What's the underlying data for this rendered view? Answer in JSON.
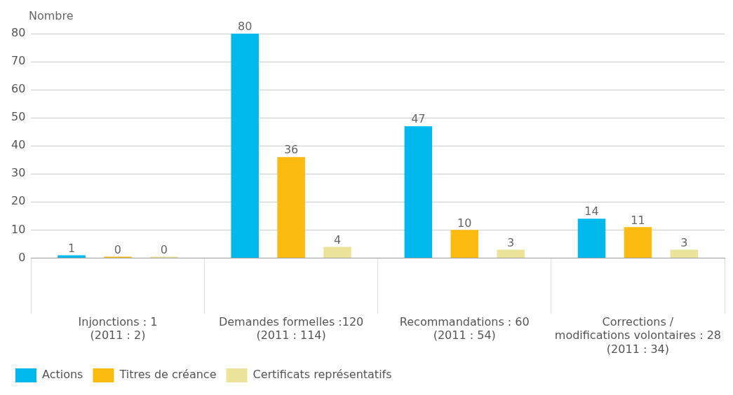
{
  "chart_data": {
    "type": "bar",
    "ylabel": "Nombre",
    "categories": [
      "Injonctions : 1\n(2011 : 2)",
      "Demandes formelles :120\n(2011 : 114)",
      "Recommandations : 60\n(2011 : 54)",
      "Corrections /\nmodifications volontaires : 28\n(2011 : 34)"
    ],
    "series": [
      {
        "name": "Actions",
        "color": "#00b9ec",
        "values": [
          1,
          80,
          47,
          14
        ]
      },
      {
        "name": "Titres de créance",
        "color": "#fbbb10",
        "values": [
          0,
          36,
          10,
          11
        ]
      },
      {
        "name": "Certificats représentatifs",
        "color": "#ece39a",
        "values": [
          0,
          4,
          3,
          3
        ]
      }
    ],
    "ylim": [
      0,
      80
    ],
    "yticks": [
      0,
      10,
      20,
      30,
      40,
      50,
      60,
      70,
      80
    ],
    "grid": "y",
    "legend": "bottom left",
    "data_labels": true
  }
}
